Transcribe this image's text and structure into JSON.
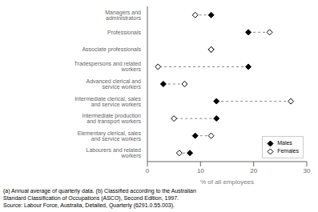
{
  "chart_data": {
    "type": "dumbbell",
    "categories": [
      "Managers and administrators",
      "Professionals",
      "Associate professionals",
      "Tradespersons and related workers",
      "Advanced clerical and service workers",
      "Intermediate clerical, sales and service workers",
      "Intermediate production and transport workers",
      "Elementary clerical, sales and service workers",
      "Labourers and related workers"
    ],
    "series": [
      {
        "name": "Males",
        "color": "#000000",
        "marker": "diamond",
        "values": [
          12,
          19,
          12,
          19,
          3,
          13,
          13,
          9,
          8
        ]
      },
      {
        "name": "Females",
        "color": "#000000",
        "marker": "open_diamond",
        "values": [
          9,
          23,
          12,
          2,
          7,
          27,
          5,
          12,
          6
        ]
      }
    ],
    "color": "#888888",
    "line_style": "dashed",
    "xlabel": "% of all employees",
    "xlim": [
      0,
      30
    ],
    "xticks": [
      0,
      10,
      20,
      30
    ],
    "legend": "lower right",
    "annotations": [
      "(a) Annual average of quarterly data.  (b) Classified according to the Australian",
      "Standard Classification of Occupations (ASCO), Second Edition, 1997.",
      "Source: Labour Force, Australia, Detailed, Quarterly (6291.0.55.003)."
    ]
  }
}
